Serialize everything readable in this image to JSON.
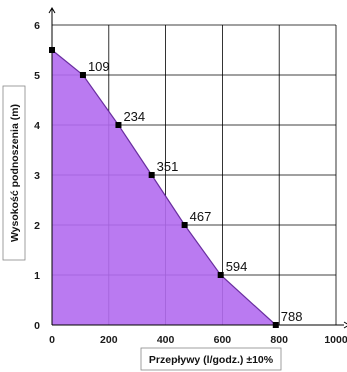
{
  "chart_data": {
    "type": "area",
    "title": "",
    "xlabel": "Przepływy (l/godz.) ±10%",
    "ylabel": "Wysokość podnoszenia (m)",
    "xlim": [
      0,
      1000
    ],
    "ylim": [
      0,
      6
    ],
    "x_ticks": [
      "0",
      "200",
      "400",
      "600",
      "800",
      "1000"
    ],
    "y_ticks": [
      "0",
      "1",
      "2",
      "3",
      "4",
      "5",
      "6"
    ],
    "grid": true,
    "legend": "none",
    "fill_color": "#b36bf0",
    "line_color": "#6a2fa0",
    "marker_color": "#000000",
    "series": [
      {
        "x": [
          0,
          109,
          234,
          351,
          467,
          594,
          788
        ],
        "y": [
          5.5,
          5.0,
          4.0,
          3.0,
          2.0,
          1.0,
          0.0
        ],
        "point_labels": [
          "",
          "109",
          "234",
          "351",
          "467",
          "594",
          "788"
        ]
      }
    ]
  }
}
